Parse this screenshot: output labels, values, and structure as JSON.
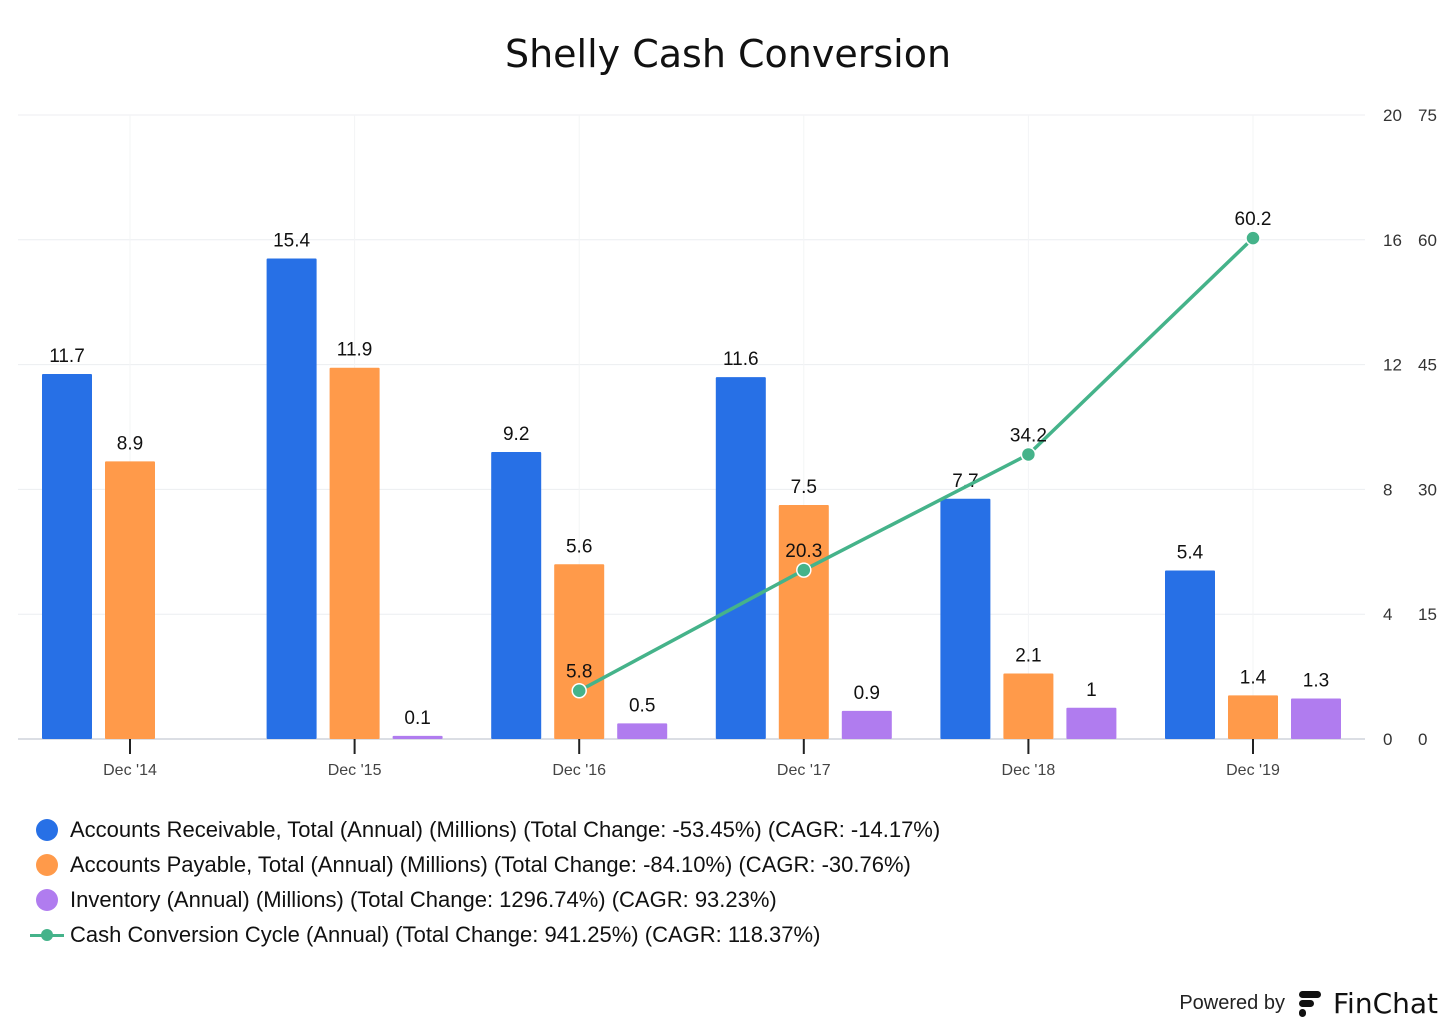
{
  "chart_data": {
    "type": "bar",
    "title": "Shelly Cash Conversion",
    "categories": [
      "Dec '14",
      "Dec '15",
      "Dec '16",
      "Dec '17",
      "Dec '18",
      "Dec '19"
    ],
    "series": [
      {
        "name": "Accounts Receivable, Total (Annual) (Millions) (Total Change: -53.45%) (CAGR: -14.17%)",
        "type": "bar",
        "axis": "left",
        "color": "#2770E6",
        "values": [
          11.7,
          15.4,
          9.2,
          11.6,
          7.7,
          5.4
        ],
        "labels": [
          "11.7",
          "15.4",
          "9.2",
          "11.6",
          "7.7",
          "5.4"
        ]
      },
      {
        "name": "Accounts Payable, Total (Annual) (Millions) (Total Change: -84.10%) (CAGR: -30.76%)",
        "type": "bar",
        "axis": "left",
        "color": "#FF9A4A",
        "values": [
          8.9,
          11.9,
          5.6,
          7.5,
          2.1,
          1.4
        ],
        "labels": [
          "8.9",
          "11.9",
          "5.6",
          "7.5",
          "2.1",
          "1.4"
        ]
      },
      {
        "name": "Inventory (Annual) (Millions) (Total Change: 1296.74%) (CAGR: 93.23%)",
        "type": "bar",
        "axis": "left",
        "color": "#B07CEF",
        "values": [
          null,
          0.1,
          0.5,
          0.9,
          1,
          1.3
        ],
        "labels": [
          "",
          "0.1",
          "0.5",
          "0.9",
          "1",
          "1.3"
        ]
      },
      {
        "name": "Cash Conversion Cycle (Annual) (Total Change: 941.25%) (CAGR: 118.37%)",
        "type": "line",
        "axis": "right",
        "color": "#45B38A",
        "values": [
          null,
          null,
          5.8,
          20.3,
          34.2,
          60.2
        ],
        "labels": [
          "",
          "",
          "5.8",
          "20.3",
          "34.2",
          "60.2"
        ]
      }
    ],
    "left_axis": {
      "ticks": [
        "0",
        "4",
        "8",
        "12",
        "16",
        "20"
      ],
      "range": [
        0,
        20
      ]
    },
    "right_axis": {
      "ticks": [
        "0",
        "15",
        "30",
        "45",
        "60",
        "75"
      ],
      "range": [
        0,
        75
      ]
    },
    "grid": true,
    "legend": "bottom-left"
  },
  "footer": {
    "powered_by": "Powered by",
    "brand": "FinChat"
  }
}
